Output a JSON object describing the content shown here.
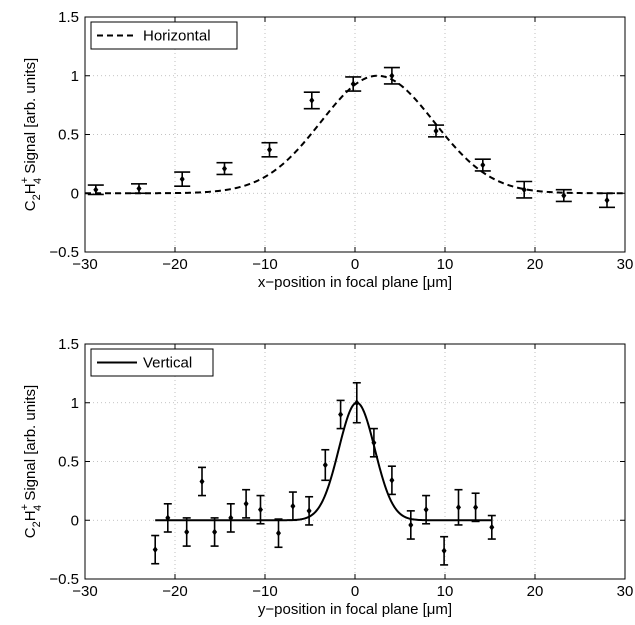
{
  "chart_data": [
    {
      "type": "line",
      "xlabel": "x−position in focal plane [μm]",
      "ylabel_parts": {
        "c": "C",
        "sub1": "2",
        "h": "H",
        "sup": "+",
        "sub2": "4",
        "rest": " Signal [arb. units]"
      },
      "xlim": [
        -30,
        30
      ],
      "ylim": [
        -0.5,
        1.5
      ],
      "xticks": [
        -30,
        -20,
        -10,
        0,
        10,
        20,
        30
      ],
      "yticks": [
        -0.5,
        0,
        0.5,
        1,
        1.5
      ],
      "grid": true,
      "legend_position": "top-left",
      "series": [
        {
          "name": "Horizontal",
          "style": "dashed",
          "fit": {
            "amplitude": 1.0,
            "center": 2.5,
            "sigma": 6.3
          },
          "points": [
            {
              "x": -28.8,
              "y": 0.03,
              "err": 0.04
            },
            {
              "x": -24.0,
              "y": 0.04,
              "err": 0.04
            },
            {
              "x": -19.2,
              "y": 0.12,
              "err": 0.06
            },
            {
              "x": -14.5,
              "y": 0.21,
              "err": 0.05
            },
            {
              "x": -9.5,
              "y": 0.37,
              "err": 0.06
            },
            {
              "x": -4.8,
              "y": 0.79,
              "err": 0.07
            },
            {
              "x": -0.2,
              "y": 0.93,
              "err": 0.06
            },
            {
              "x": 4.1,
              "y": 1.0,
              "err": 0.07
            },
            {
              "x": 9.0,
              "y": 0.53,
              "err": 0.05
            },
            {
              "x": 14.2,
              "y": 0.24,
              "err": 0.05
            },
            {
              "x": 18.8,
              "y": 0.03,
              "err": 0.07
            },
            {
              "x": 23.2,
              "y": -0.02,
              "err": 0.05
            },
            {
              "x": 28.0,
              "y": -0.06,
              "err": 0.06
            }
          ]
        }
      ]
    },
    {
      "type": "line",
      "xlabel": "y−position in focal plane [μm]",
      "ylabel_parts": {
        "c": "C",
        "sub1": "2",
        "h": "H",
        "sup": "+",
        "sub2": "4",
        "rest": " Signal [arb. units]"
      },
      "xlim": [
        -30,
        30
      ],
      "ylim": [
        -0.5,
        1.5
      ],
      "xticks": [
        -30,
        -20,
        -10,
        0,
        10,
        20,
        30
      ],
      "yticks": [
        -0.5,
        0,
        0.5,
        1,
        1.5
      ],
      "grid": true,
      "legend_position": "top-left",
      "series": [
        {
          "name": "Vertical",
          "style": "solid",
          "fit": {
            "amplitude": 1.0,
            "center": 0.2,
            "sigma": 2.0,
            "xmin": -22.2,
            "xmax": 15.2
          },
          "points": [
            {
              "x": -22.2,
              "y": -0.25,
              "err": 0.12
            },
            {
              "x": -20.8,
              "y": 0.02,
              "err": 0.12
            },
            {
              "x": -18.7,
              "y": -0.1,
              "err": 0.12
            },
            {
              "x": -17.0,
              "y": 0.33,
              "err": 0.12
            },
            {
              "x": -15.6,
              "y": -0.1,
              "err": 0.12
            },
            {
              "x": -13.8,
              "y": 0.02,
              "err": 0.12
            },
            {
              "x": -12.1,
              "y": 0.14,
              "err": 0.12
            },
            {
              "x": -10.5,
              "y": 0.09,
              "err": 0.12
            },
            {
              "x": -8.5,
              "y": -0.11,
              "err": 0.12
            },
            {
              "x": -6.9,
              "y": 0.12,
              "err": 0.12
            },
            {
              "x": -5.1,
              "y": 0.08,
              "err": 0.12
            },
            {
              "x": -3.3,
              "y": 0.47,
              "err": 0.13
            },
            {
              "x": -1.6,
              "y": 0.9,
              "err": 0.12
            },
            {
              "x": 0.2,
              "y": 1.0,
              "err": 0.17
            },
            {
              "x": 2.1,
              "y": 0.66,
              "err": 0.12
            },
            {
              "x": 4.1,
              "y": 0.34,
              "err": 0.12
            },
            {
              "x": 6.2,
              "y": -0.04,
              "err": 0.12
            },
            {
              "x": 7.9,
              "y": 0.09,
              "err": 0.12
            },
            {
              "x": 9.9,
              "y": -0.26,
              "err": 0.12
            },
            {
              "x": 11.5,
              "y": 0.11,
              "err": 0.15
            },
            {
              "x": 13.4,
              "y": 0.11,
              "err": 0.12
            },
            {
              "x": 15.2,
              "y": -0.06,
              "err": 0.1
            }
          ]
        }
      ]
    }
  ]
}
